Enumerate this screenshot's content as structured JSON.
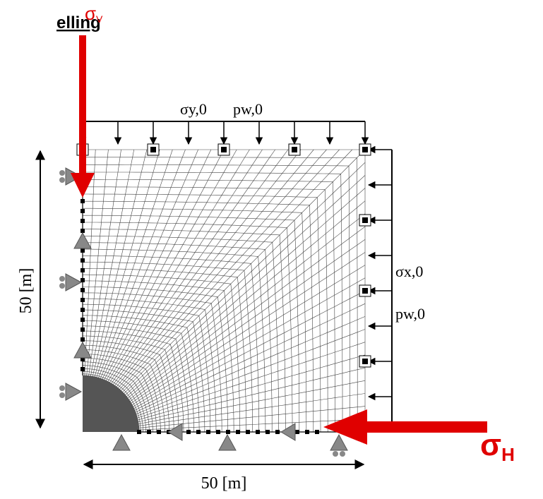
{
  "header": {
    "title": "elling"
  },
  "loads": {
    "vertical": {
      "symbol": "σ",
      "sub": "V"
    },
    "horizontal": {
      "symbol": "σ",
      "sub": "H"
    }
  },
  "boundary_labels": {
    "top_stress": "σy,0",
    "top_pressure": "pw,0",
    "right_stress": "σx,0",
    "right_pressure": "pw,0"
  },
  "dimensions": {
    "height": "50 [m]",
    "width": "50 [m]"
  }
}
